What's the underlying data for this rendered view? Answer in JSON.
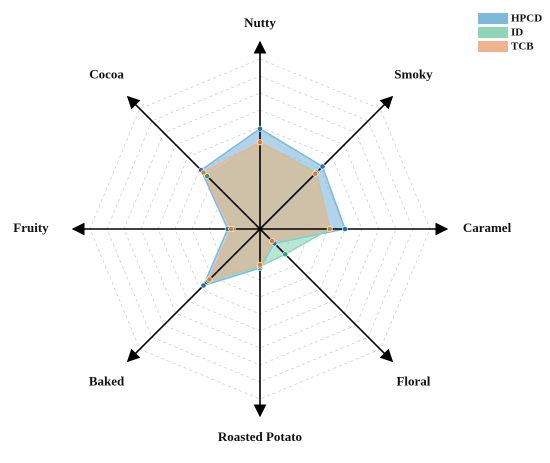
{
  "chart_data": {
    "type": "radar",
    "categories": [
      "Nutty",
      "Smoky",
      "Caramel",
      "Floral",
      "Roasted Potato",
      "Baked",
      "Fruity",
      "Cocoa"
    ],
    "rlim": [
      0,
      10
    ],
    "rticks": [
      1,
      2,
      3,
      4,
      5,
      6,
      7,
      8,
      9,
      10
    ],
    "grid": true,
    "series": [
      {
        "name": "HPCD",
        "color": "#7fb8dd",
        "point_color": "#1f6fb4",
        "values": [
          5.9,
          5.2,
          5.0,
          1.2,
          2.3,
          4.7,
          1.9,
          4.9
        ]
      },
      {
        "name": "ID",
        "color": "#8fd6b8",
        "point_color": "#2e9e78",
        "values": [
          5.1,
          4.7,
          4.1,
          2.1,
          2.2,
          4.3,
          1.6,
          4.4
        ]
      },
      {
        "name": "TCB",
        "color": "#efb48f",
        "point_color": "#e07a28",
        "values": [
          5.1,
          4.6,
          4.1,
          1.0,
          2.1,
          4.2,
          1.7,
          4.7
        ]
      }
    ],
    "legend": "top-right"
  }
}
